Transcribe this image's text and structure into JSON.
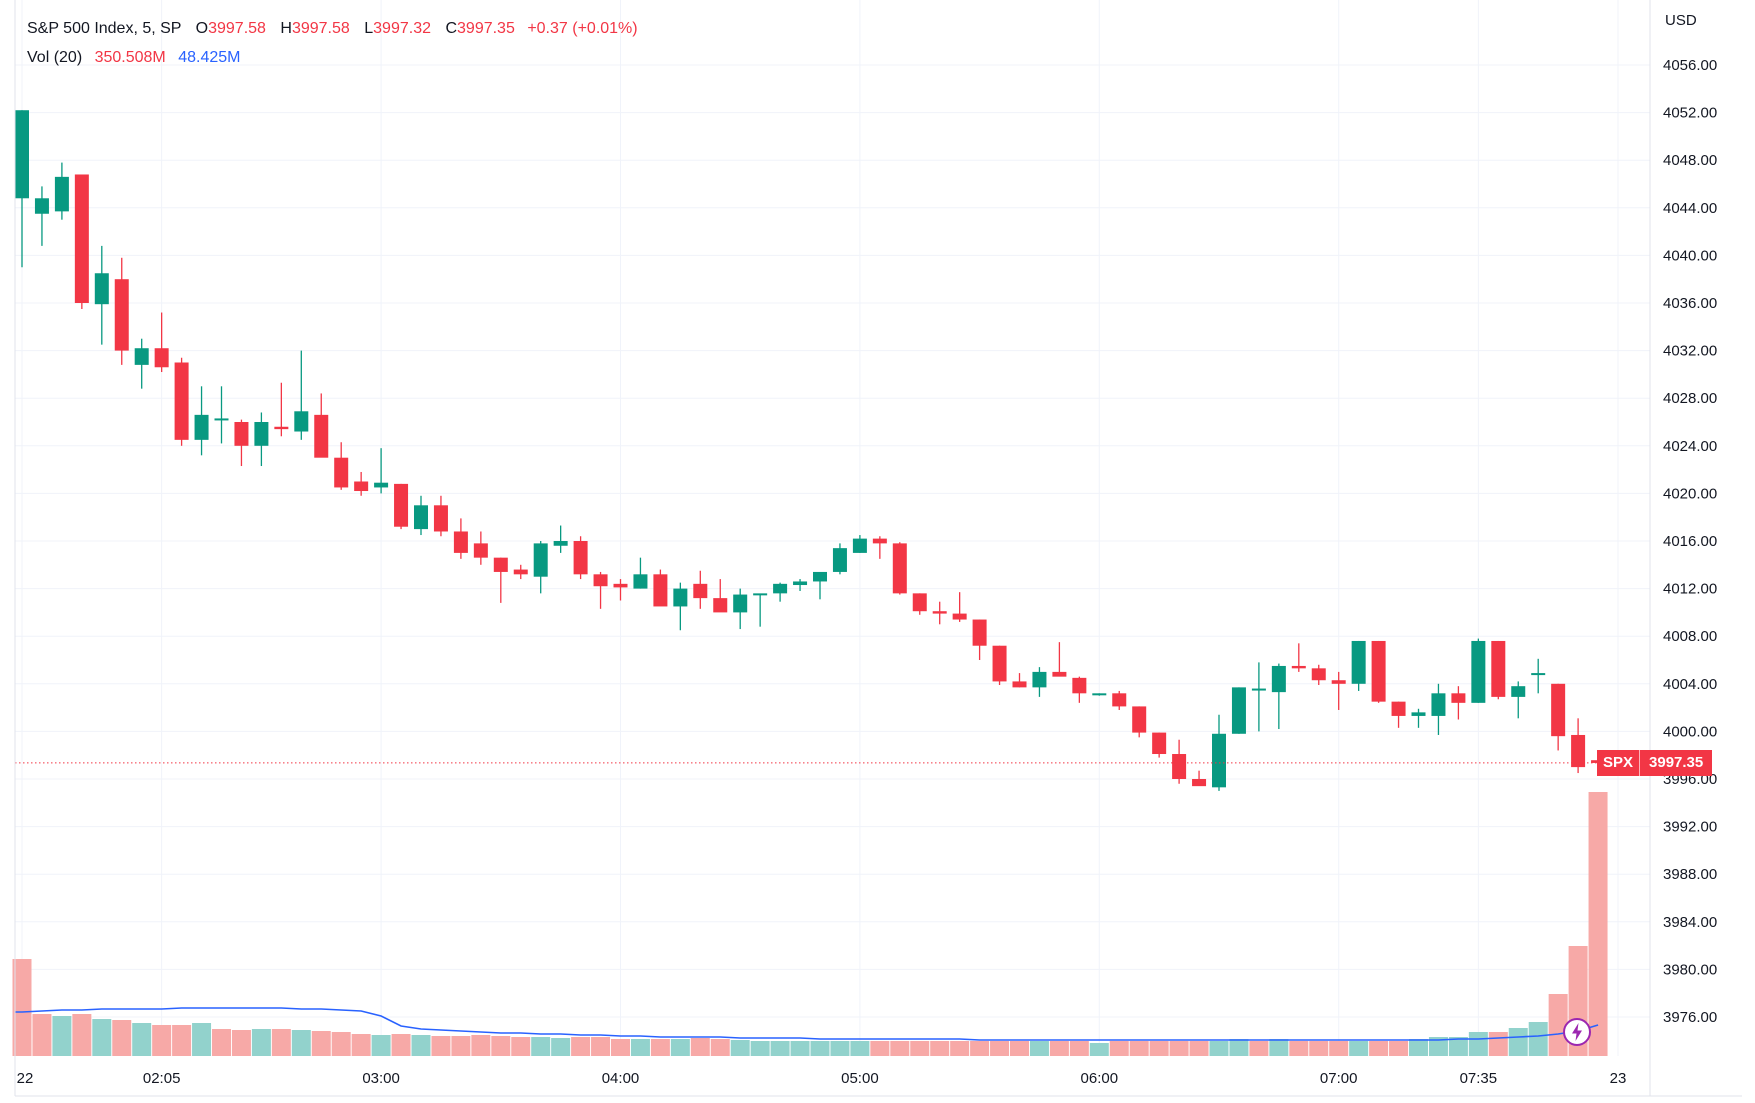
{
  "legend": {
    "title": "S&P 500 Index, 5, SP",
    "o_label": "O",
    "o_value": "3997.58",
    "h_label": "H",
    "h_value": "3997.58",
    "l_label": "L",
    "l_value": "3997.32",
    "c_label": "C",
    "c_value": "3997.35",
    "change": "+0.37 (+0.01%)",
    "vol_label": "Vol (20)",
    "vol_value": "350.508M",
    "vol_ma_value": "48.425M"
  },
  "axis": {
    "currency": "USD",
    "last_symbol": "SPX",
    "last_price": "3997.35"
  },
  "icons": {
    "bolt": "lightning-bolt-icon"
  },
  "colors": {
    "up": "#089981",
    "down": "#f23645",
    "vol_up": "#92d2cc",
    "vol_down": "#f7a9a7",
    "vol_ma": "#2962ff",
    "grid": "#f0f3fa"
  },
  "chart_data": {
    "type": "candlestick",
    "title": "S&P 500 Index, 5, SP",
    "y_axis": {
      "ticks": [
        4056,
        4052,
        4048,
        4044,
        4040,
        4036,
        4032,
        4028,
        4024,
        4020,
        4016,
        4012,
        4008,
        4004,
        4000,
        3996,
        3992,
        3988,
        3984,
        3980,
        3976
      ],
      "tick_labels": [
        "4056.00",
        "4052.00",
        "4048.00",
        "4044.00",
        "4040.00",
        "4036.00",
        "4032.00",
        "4028.00",
        "4024.00",
        "4020.00",
        "4016.00",
        "4012.00",
        "4008.00",
        "4004.00",
        "4000.00",
        "3996.00",
        "3992.00",
        "3988.00",
        "3984.00",
        "3980.00",
        "3976.00"
      ],
      "range": [
        3973.5,
        4059.5
      ]
    },
    "x_axis": {
      "tick_labels": [
        {
          "bar": 0,
          "label": "22"
        },
        {
          "bar": 7,
          "label": "02:05"
        },
        {
          "bar": 18,
          "label": "03:00"
        },
        {
          "bar": 30,
          "label": "04:00"
        },
        {
          "bar": 42,
          "label": "05:00"
        },
        {
          "bar": 54,
          "label": "06:00"
        },
        {
          "bar": 66,
          "label": "07:00"
        },
        {
          "bar": 73,
          "label": "07:35"
        },
        {
          "bar": 80,
          "label": "23"
        }
      ]
    },
    "ohlc": [
      [
        4044.8,
        4052.2,
        4039.0,
        4052.2
      ],
      [
        4043.5,
        4045.8,
        4040.8,
        4044.8
      ],
      [
        4043.7,
        4047.8,
        4043.0,
        4046.6
      ],
      [
        4046.8,
        4046.8,
        4035.5,
        4036.0
      ],
      [
        4035.9,
        4040.8,
        4032.5,
        4038.5
      ],
      [
        4038.0,
        4039.8,
        4030.8,
        4032.0
      ],
      [
        4030.8,
        4033.0,
        4028.8,
        4032.2
      ],
      [
        4032.2,
        4035.2,
        4030.2,
        4030.6
      ],
      [
        4031.0,
        4031.4,
        4024.0,
        4024.5
      ],
      [
        4024.5,
        4029.0,
        4023.2,
        4026.6
      ],
      [
        4026.3,
        4029.0,
        4024.2,
        4026.3
      ],
      [
        4026.0,
        4026.2,
        4022.3,
        4024.0
      ],
      [
        4024.0,
        4026.8,
        4022.3,
        4026.0
      ],
      [
        4025.6,
        4029.3,
        4024.8,
        4025.4
      ],
      [
        4025.2,
        4032.0,
        4024.5,
        4026.9
      ],
      [
        4026.6,
        4028.4,
        4023.2,
        4023.0
      ],
      [
        4023.0,
        4024.3,
        4020.3,
        4020.5
      ],
      [
        4021.0,
        4021.8,
        4019.8,
        4020.2
      ],
      [
        4020.5,
        4023.8,
        4020.0,
        4020.9
      ],
      [
        4020.8,
        4020.8,
        4017.0,
        4017.2
      ],
      [
        4017.0,
        4019.8,
        4016.5,
        4019.0
      ],
      [
        4019.0,
        4019.8,
        4016.4,
        4016.8
      ],
      [
        4016.8,
        4017.9,
        4014.5,
        4015.0
      ],
      [
        4015.8,
        4016.8,
        4014.0,
        4014.6
      ],
      [
        4014.6,
        4014.6,
        4010.8,
        4013.4
      ],
      [
        4013.6,
        4014.0,
        4012.8,
        4013.2
      ],
      [
        4013.0,
        4016.0,
        4011.6,
        4015.8
      ],
      [
        4015.6,
        4017.3,
        4015.0,
        4016.0
      ],
      [
        4016.0,
        4016.4,
        4012.8,
        4013.2
      ],
      [
        4013.2,
        4013.4,
        4010.3,
        4012.2
      ],
      [
        4012.4,
        4012.8,
        4011.0,
        4012.1
      ],
      [
        4012.0,
        4014.6,
        4012.0,
        4013.2
      ],
      [
        4013.2,
        4013.6,
        4010.6,
        4010.5
      ],
      [
        4010.5,
        4012.5,
        4008.5,
        4012.0
      ],
      [
        4012.4,
        4013.5,
        4010.3,
        4011.2
      ],
      [
        4011.2,
        4012.8,
        4010.6,
        4010.0
      ],
      [
        4010.0,
        4012.0,
        4008.6,
        4011.5
      ],
      [
        4011.5,
        4011.5,
        4008.8,
        4011.6
      ],
      [
        4011.6,
        4012.5,
        4010.9,
        4012.4
      ],
      [
        4012.3,
        4012.8,
        4011.8,
        4012.6
      ],
      [
        4012.6,
        4013.3,
        4011.1,
        4013.4
      ],
      [
        4013.4,
        4015.8,
        4013.2,
        4015.4
      ],
      [
        4015.0,
        4016.5,
        4015.0,
        4016.2
      ],
      [
        4016.2,
        4016.4,
        4014.5,
        4015.8
      ],
      [
        4015.8,
        4015.9,
        4011.5,
        4011.6
      ],
      [
        4011.6,
        4011.6,
        4009.8,
        4010.1
      ],
      [
        4010.1,
        4010.9,
        4009.0,
        4009.9
      ],
      [
        4009.9,
        4011.7,
        4009.2,
        4009.4
      ],
      [
        4009.4,
        4009.4,
        4006.0,
        4007.2
      ],
      [
        4007.2,
        4007.2,
        4003.9,
        4004.2
      ],
      [
        4004.2,
        4004.9,
        4003.7,
        4003.7
      ],
      [
        4003.7,
        4005.4,
        4002.9,
        4005.0
      ],
      [
        4005.0,
        4007.5,
        4004.8,
        4004.6
      ],
      [
        4004.5,
        4004.6,
        4002.4,
        4003.2
      ],
      [
        4003.2,
        4003.2,
        4003.0,
        4003.2
      ],
      [
        4003.2,
        4003.4,
        4001.8,
        4002.1
      ],
      [
        4002.1,
        4002.1,
        3999.5,
        3999.9
      ],
      [
        3999.9,
        3999.9,
        3997.8,
        3998.1
      ],
      [
        3998.1,
        3999.3,
        3995.6,
        3996.0
      ],
      [
        3996.0,
        3996.7,
        3995.6,
        3995.4
      ],
      [
        3995.3,
        4001.4,
        3995.0,
        3999.8
      ],
      [
        3999.8,
        4003.7,
        3999.8,
        4003.7
      ],
      [
        4003.5,
        4005.8,
        4000.0,
        4003.6
      ],
      [
        4003.3,
        4005.7,
        4000.2,
        4005.5
      ],
      [
        4005.5,
        4007.4,
        4005.0,
        4005.3
      ],
      [
        4005.3,
        4005.6,
        4003.9,
        4004.3
      ],
      [
        4004.3,
        4005.0,
        4001.8,
        4004.0
      ],
      [
        4004.0,
        4007.6,
        4003.4,
        4007.6
      ],
      [
        4007.6,
        4007.6,
        4002.4,
        4002.5
      ],
      [
        4002.5,
        4002.5,
        4000.3,
        4001.3
      ],
      [
        4001.3,
        4001.9,
        4000.3,
        4001.6
      ],
      [
        4001.3,
        4004.0,
        3999.7,
        4003.2
      ],
      [
        4003.2,
        4003.8,
        4001.0,
        4002.4
      ],
      [
        4002.4,
        4007.8,
        4002.4,
        4007.6
      ],
      [
        4007.6,
        4007.6,
        4002.7,
        4002.9
      ],
      [
        4002.9,
        4004.2,
        4001.1,
        4003.8
      ],
      [
        4004.8,
        4006.1,
        4003.2,
        4004.9
      ],
      [
        4004.0,
        4004.0,
        3998.4,
        3999.6
      ],
      [
        3999.7,
        4001.1,
        3996.5,
        3997.0
      ],
      [
        3997.58,
        3997.58,
        3997.32,
        3997.35
      ]
    ],
    "volume_scale_max": 1,
    "volume": [
      {
        "v": 0.097,
        "dir": "down"
      },
      {
        "v": 0.042,
        "dir": "down"
      },
      {
        "v": 0.04,
        "dir": "up"
      },
      {
        "v": 0.042,
        "dir": "down"
      },
      {
        "v": 0.037,
        "dir": "up"
      },
      {
        "v": 0.036,
        "dir": "down"
      },
      {
        "v": 0.033,
        "dir": "up"
      },
      {
        "v": 0.031,
        "dir": "down"
      },
      {
        "v": 0.031,
        "dir": "down"
      },
      {
        "v": 0.033,
        "dir": "up"
      },
      {
        "v": 0.027,
        "dir": "down"
      },
      {
        "v": 0.026,
        "dir": "down"
      },
      {
        "v": 0.027,
        "dir": "up"
      },
      {
        "v": 0.027,
        "dir": "down"
      },
      {
        "v": 0.026,
        "dir": "up"
      },
      {
        "v": 0.025,
        "dir": "down"
      },
      {
        "v": 0.024,
        "dir": "down"
      },
      {
        "v": 0.022,
        "dir": "down"
      },
      {
        "v": 0.021,
        "dir": "up"
      },
      {
        "v": 0.022,
        "dir": "down"
      },
      {
        "v": 0.021,
        "dir": "up"
      },
      {
        "v": 0.02,
        "dir": "down"
      },
      {
        "v": 0.02,
        "dir": "down"
      },
      {
        "v": 0.021,
        "dir": "down"
      },
      {
        "v": 0.02,
        "dir": "down"
      },
      {
        "v": 0.019,
        "dir": "down"
      },
      {
        "v": 0.019,
        "dir": "up"
      },
      {
        "v": 0.018,
        "dir": "up"
      },
      {
        "v": 0.019,
        "dir": "down"
      },
      {
        "v": 0.019,
        "dir": "down"
      },
      {
        "v": 0.017,
        "dir": "down"
      },
      {
        "v": 0.017,
        "dir": "up"
      },
      {
        "v": 0.017,
        "dir": "down"
      },
      {
        "v": 0.017,
        "dir": "up"
      },
      {
        "v": 0.018,
        "dir": "down"
      },
      {
        "v": 0.017,
        "dir": "down"
      },
      {
        "v": 0.016,
        "dir": "up"
      },
      {
        "v": 0.015,
        "dir": "up"
      },
      {
        "v": 0.015,
        "dir": "up"
      },
      {
        "v": 0.015,
        "dir": "up"
      },
      {
        "v": 0.015,
        "dir": "up"
      },
      {
        "v": 0.015,
        "dir": "up"
      },
      {
        "v": 0.015,
        "dir": "up"
      },
      {
        "v": 0.015,
        "dir": "down"
      },
      {
        "v": 0.015,
        "dir": "down"
      },
      {
        "v": 0.015,
        "dir": "down"
      },
      {
        "v": 0.015,
        "dir": "down"
      },
      {
        "v": 0.015,
        "dir": "down"
      },
      {
        "v": 0.015,
        "dir": "down"
      },
      {
        "v": 0.015,
        "dir": "down"
      },
      {
        "v": 0.015,
        "dir": "down"
      },
      {
        "v": 0.015,
        "dir": "up"
      },
      {
        "v": 0.015,
        "dir": "down"
      },
      {
        "v": 0.015,
        "dir": "down"
      },
      {
        "v": 0.013,
        "dir": "up"
      },
      {
        "v": 0.015,
        "dir": "down"
      },
      {
        "v": 0.015,
        "dir": "down"
      },
      {
        "v": 0.015,
        "dir": "down"
      },
      {
        "v": 0.015,
        "dir": "down"
      },
      {
        "v": 0.015,
        "dir": "down"
      },
      {
        "v": 0.015,
        "dir": "up"
      },
      {
        "v": 0.017,
        "dir": "up"
      },
      {
        "v": 0.015,
        "dir": "down"
      },
      {
        "v": 0.017,
        "dir": "up"
      },
      {
        "v": 0.015,
        "dir": "down"
      },
      {
        "v": 0.015,
        "dir": "down"
      },
      {
        "v": 0.015,
        "dir": "down"
      },
      {
        "v": 0.015,
        "dir": "up"
      },
      {
        "v": 0.015,
        "dir": "down"
      },
      {
        "v": 0.015,
        "dir": "down"
      },
      {
        "v": 0.017,
        "dir": "up"
      },
      {
        "v": 0.019,
        "dir": "up"
      },
      {
        "v": 0.019,
        "dir": "up"
      },
      {
        "v": 0.024,
        "dir": "up"
      },
      {
        "v": 0.024,
        "dir": "down"
      },
      {
        "v": 0.028,
        "dir": "up"
      },
      {
        "v": 0.034,
        "dir": "up"
      },
      {
        "v": 0.062,
        "dir": "down"
      },
      {
        "v": 0.11,
        "dir": "down"
      },
      {
        "v": 0.264,
        "dir": "down"
      }
    ],
    "volume_ma": [
      0.044,
      0.045,
      0.046,
      0.046,
      0.047,
      0.047,
      0.047,
      0.047,
      0.048,
      0.048,
      0.048,
      0.048,
      0.048,
      0.048,
      0.047,
      0.047,
      0.046,
      0.045,
      0.04,
      0.03,
      0.027,
      0.026,
      0.025,
      0.024,
      0.023,
      0.023,
      0.022,
      0.022,
      0.021,
      0.021,
      0.02,
      0.02,
      0.019,
      0.019,
      0.019,
      0.019,
      0.018,
      0.018,
      0.018,
      0.018,
      0.017,
      0.017,
      0.017,
      0.017,
      0.017,
      0.017,
      0.017,
      0.017,
      0.016,
      0.016,
      0.016,
      0.016,
      0.016,
      0.016,
      0.016,
      0.016,
      0.016,
      0.016,
      0.016,
      0.016,
      0.016,
      0.016,
      0.016,
      0.016,
      0.016,
      0.016,
      0.016,
      0.016,
      0.016,
      0.016,
      0.016,
      0.016,
      0.017,
      0.017,
      0.018,
      0.019,
      0.02,
      0.022,
      0.025,
      0.031
    ],
    "last_price": 3997.35
  }
}
